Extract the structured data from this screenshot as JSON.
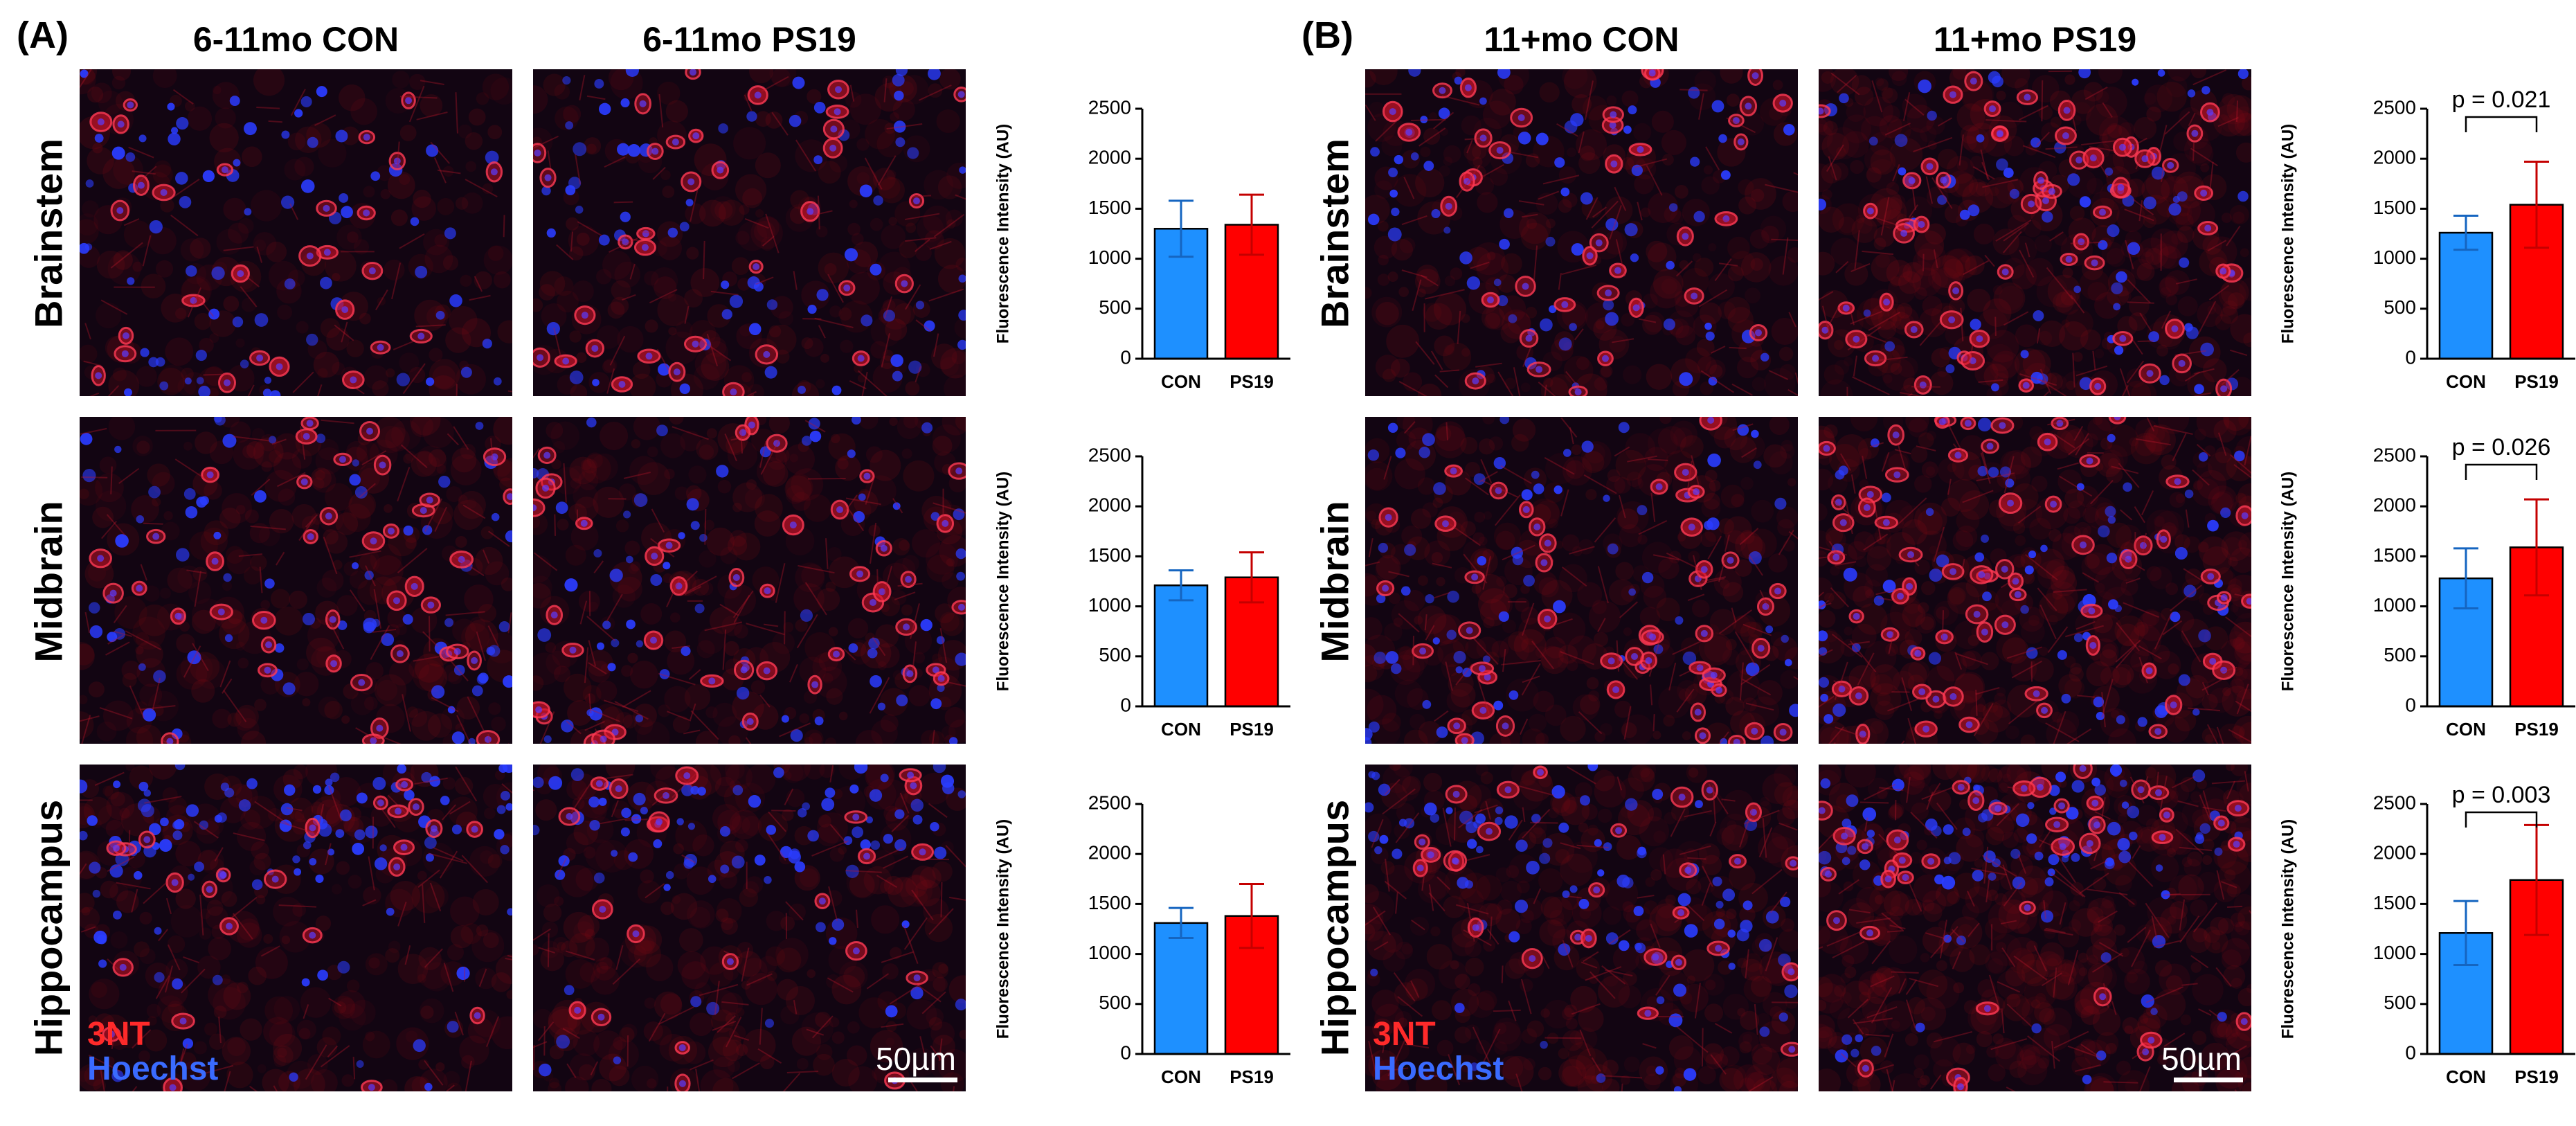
{
  "panels": [
    {
      "letter": "(A)",
      "columns": [
        "6-11mo CON",
        "6-11mo PS19"
      ]
    },
    {
      "letter": "(B)",
      "columns": [
        "11+mo CON",
        "11+mo PS19"
      ]
    }
  ],
  "rows": [
    "Brainstem",
    "Midbrain",
    "Hippocampus"
  ],
  "legend": {
    "marker": "3NT",
    "stain": "Hoechst"
  },
  "scale_bar": "50µm",
  "colors": {
    "con": "#1E90FF",
    "ps19": "#FF0000",
    "marker": "#ff2a2a",
    "stain": "#3a6bff"
  },
  "chart_data": [
    {
      "type": "bar",
      "panel": "A",
      "region": "Brainstem",
      "categories": [
        "CON",
        "PS19"
      ],
      "values": [
        1300,
        1340
      ],
      "errors": [
        280,
        300
      ],
      "ylabel": "Fluorescence Intensity (AU)",
      "ylim": [
        0,
        2500
      ],
      "yticks": [
        0,
        500,
        1000,
        1500,
        2000,
        2500
      ],
      "annotation": ""
    },
    {
      "type": "bar",
      "panel": "A",
      "region": "Midbrain",
      "categories": [
        "CON",
        "PS19"
      ],
      "values": [
        1210,
        1290
      ],
      "errors": [
        150,
        250
      ],
      "ylabel": "Fluorescence Intensity (AU)",
      "ylim": [
        0,
        2500
      ],
      "yticks": [
        0,
        500,
        1000,
        1500,
        2000,
        2500
      ],
      "annotation": ""
    },
    {
      "type": "bar",
      "panel": "A",
      "region": "Hippocampus",
      "categories": [
        "CON",
        "PS19"
      ],
      "values": [
        1310,
        1380
      ],
      "errors": [
        150,
        320
      ],
      "ylabel": "Fluorescence Intensity (AU)",
      "ylim": [
        0,
        2500
      ],
      "yticks": [
        0,
        500,
        1000,
        1500,
        2000,
        2500
      ],
      "annotation": ""
    },
    {
      "type": "bar",
      "panel": "B",
      "region": "Brainstem",
      "categories": [
        "CON",
        "PS19"
      ],
      "values": [
        1260,
        1540
      ],
      "errors": [
        170,
        430
      ],
      "ylabel": "Fluorescence Intensity (AU)",
      "ylim": [
        0,
        2500
      ],
      "yticks": [
        0,
        500,
        1000,
        1500,
        2000,
        2500
      ],
      "annotation": "p = 0.021"
    },
    {
      "type": "bar",
      "panel": "B",
      "region": "Midbrain",
      "categories": [
        "CON",
        "PS19"
      ],
      "values": [
        1280,
        1590
      ],
      "errors": [
        300,
        480
      ],
      "ylabel": "Fluorescence Intensity (AU)",
      "ylim": [
        0,
        2500
      ],
      "yticks": [
        0,
        500,
        1000,
        1500,
        2000,
        2500
      ],
      "annotation": "p = 0.026"
    },
    {
      "type": "bar",
      "panel": "B",
      "region": "Hippocampus",
      "categories": [
        "CON",
        "PS19"
      ],
      "values": [
        1210,
        1740
      ],
      "errors": [
        320,
        550
      ],
      "ylabel": "Fluorescence Intensity (AU)",
      "ylim": [
        0,
        2500
      ],
      "yticks": [
        0,
        500,
        1000,
        1500,
        2000,
        2500
      ],
      "annotation": "p = 0.003"
    }
  ]
}
